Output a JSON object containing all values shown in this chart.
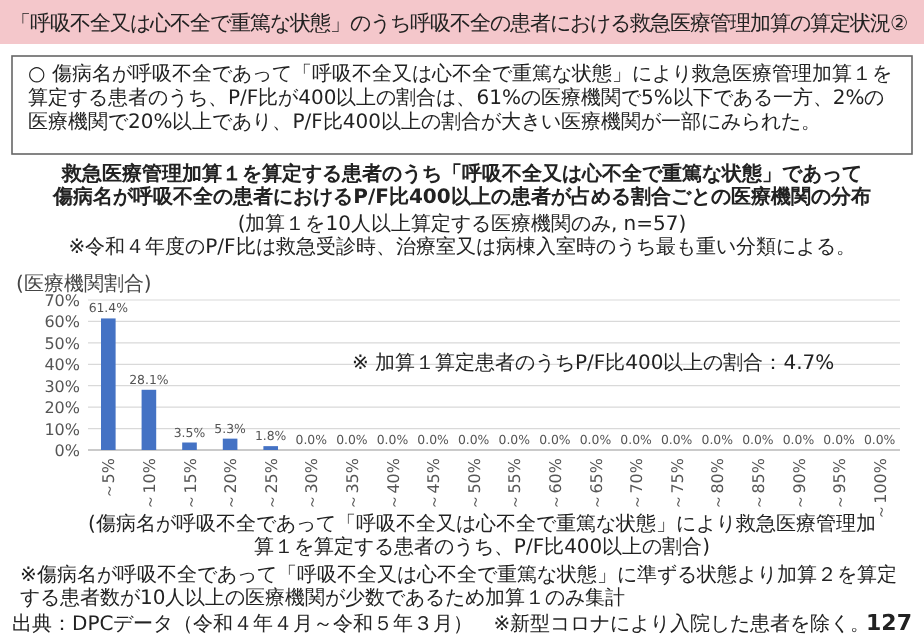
{
  "chart_data": {
    "type": "bar",
    "title": "「呼吸不全又は心不全で重篤な状態」のうち呼吸不全の患者における救急医療管理加算の算定状況②",
    "categories": [
      "～5%",
      "～10%",
      "～15%",
      "～20%",
      "～25%",
      "～30%",
      "～35%",
      "～40%",
      "～45%",
      "～50%",
      "～55%",
      "～60%",
      "～65%",
      "～70%",
      "～75%",
      "～80%",
      "～85%",
      "～90%",
      "～95%",
      "～100%"
    ],
    "values": [
      61.4,
      28.1,
      3.5,
      5.3,
      1.8,
      0.0,
      0.0,
      0.0,
      0.0,
      0.0,
      0.0,
      0.0,
      0.0,
      0.0,
      0.0,
      0.0,
      0.0,
      0.0,
      0.0,
      0.0
    ],
    "value_labels": [
      "61.4%",
      "28.1%",
      "3.5%",
      "5.3%",
      "1.8%",
      "0.0%",
      "0.0%",
      "0.0%",
      "0.0%",
      "0.0%",
      "0.0%",
      "0.0%",
      "0.0%",
      "0.0%",
      "0.0%",
      "0.0%",
      "0.0%",
      "0.0%",
      "0.0%",
      "0.0%"
    ],
    "color": "#4472c4",
    "ylim": [
      0,
      70
    ],
    "yticks": [
      {
        "value": 0,
        "label": "0%"
      },
      {
        "value": 10,
        "label": "10%"
      },
      {
        "value": 20,
        "label": "20%"
      },
      {
        "value": 30,
        "label": "30%"
      },
      {
        "value": 40,
        "label": "40%"
      },
      {
        "value": 50,
        "label": "50%"
      },
      {
        "value": 60,
        "label": "60%"
      },
      {
        "value": 70,
        "label": "70%"
      }
    ],
    "grid": "y",
    "ylabel": "(医療機関割合)",
    "xlabel": "(傷病名が呼吸不全であって「呼吸不全又は心不全で重篤な状態」により救急医療管理加算１を算定する患者のうち、P/F比400以上の割合)",
    "annotations": [
      "○ 傷病名が呼吸不全であって「呼吸不全又は心不全で重篤な状態」により救急医療管理加算１を算定する患者のうち、P/F比が400以上の割合は、61%の医療機関で5%以下である一方、2%の医療機関で20%以上であり、P/F比400以上の割合が大きい医療機関が一部にみられた。",
      "救急医療管理加算１を算定する患者のうち「呼吸不全又は心不全で重篤な状態」であって",
      "傷病名が呼吸不全の患者におけるP/F比400以上の患者が占める割合ごとの医療機関の分布",
      "(加算１を10人以上算定する医療機関のみ, n=57)",
      "※令和４年度のP/F比は救急受診時、治療室又は病棟入室時のうち最も重い分類による。",
      "※ 加算１算定患者のうちP/F比400以上の割合：4.7%",
      "※傷病名が呼吸不全であって「呼吸不全又は心不全で重篤な状態」に準ずる状態より加算２を算定する患者数が10人以上の医療機関が少数であるため加算１のみ集計",
      "出典：DPCデータ（令和４年４月～令和５年３月）　※新型コロナにより入院した患者を除く。",
      "127"
    ]
  }
}
